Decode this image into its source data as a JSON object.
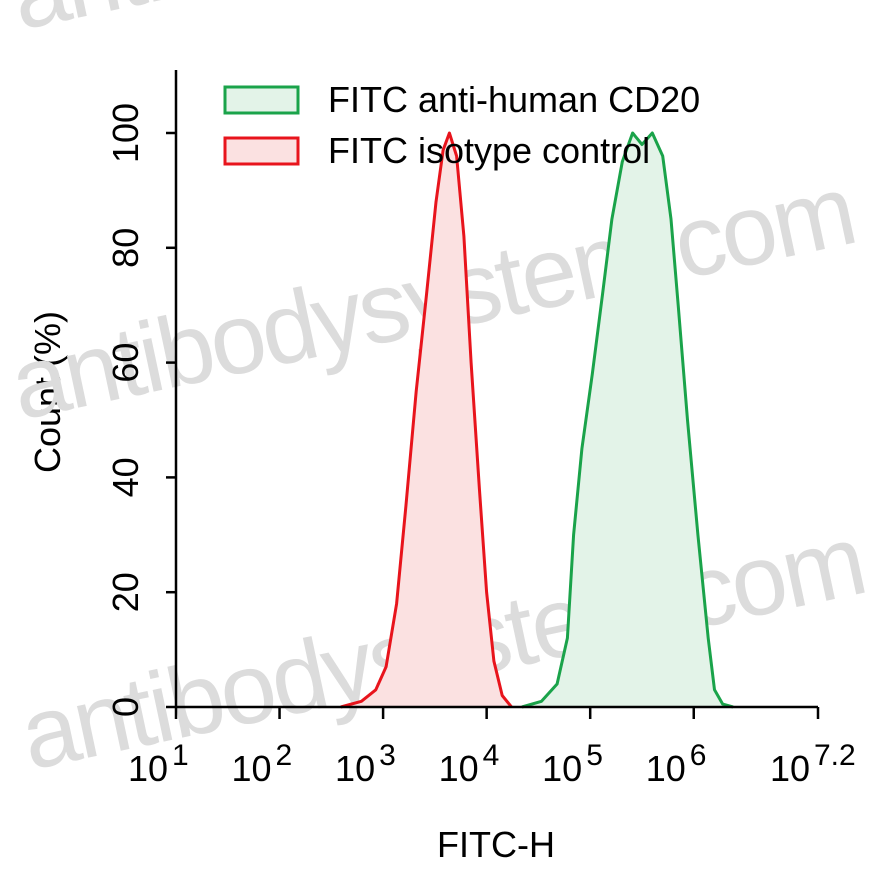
{
  "chart_data": {
    "type": "area",
    "xlabel": "FITC-H",
    "ylabel": "Count (%)",
    "watermark": "antibodysystem.com",
    "xscale": "log",
    "xlim": [
      10,
      15848931.924611134
    ],
    "xticks": [
      {
        "value": 10,
        "label": "10",
        "exponent": "1"
      },
      {
        "value": 100,
        "label": "10",
        "exponent": "2"
      },
      {
        "value": 1000,
        "label": "10",
        "exponent": "3"
      },
      {
        "value": 10000,
        "label": "10",
        "exponent": "4"
      },
      {
        "value": 100000,
        "label": "10",
        "exponent": "5"
      },
      {
        "value": 1000000,
        "label": "10",
        "exponent": "6"
      },
      {
        "value": 15848931.924611134,
        "label": "10",
        "exponent": "7.2"
      }
    ],
    "ylim": [
      0,
      110
    ],
    "yticks": [
      0,
      20,
      40,
      60,
      80,
      100
    ],
    "legend": "upper left",
    "series": [
      {
        "name": "FITC anti-human CD20",
        "color": "#1aa34a",
        "fill": "#e3f3e8",
        "x": [
          21880,
          33880,
          47860,
          60260,
          69180,
          83180,
          104700,
          131800,
          162200,
          204200,
          257000,
          316200,
          398100,
          501200,
          602600,
          707900,
          871000,
          1096000,
          1380000,
          1585000,
          1905000,
          2399000
        ],
        "values": [
          0,
          1,
          4,
          12,
          30,
          45,
          58,
          72,
          85,
          95,
          100,
          98,
          100,
          96,
          85,
          70,
          50,
          30,
          12,
          3,
          0.5,
          0
        ]
      },
      {
        "name": "FITC isotype control",
        "color": "#e8141c",
        "fill": "#fbe1e1",
        "x": [
          390,
          617,
          851,
          1070,
          1350,
          1660,
          2090,
          2630,
          3240,
          3800,
          4370,
          5130,
          6030,
          7080,
          8510,
          10000,
          11750,
          14130,
          17380
        ],
        "values": [
          0,
          1,
          3,
          7,
          18,
          35,
          55,
          72,
          88,
          97,
          100,
          96,
          82,
          60,
          38,
          20,
          8,
          2,
          0
        ]
      }
    ]
  }
}
